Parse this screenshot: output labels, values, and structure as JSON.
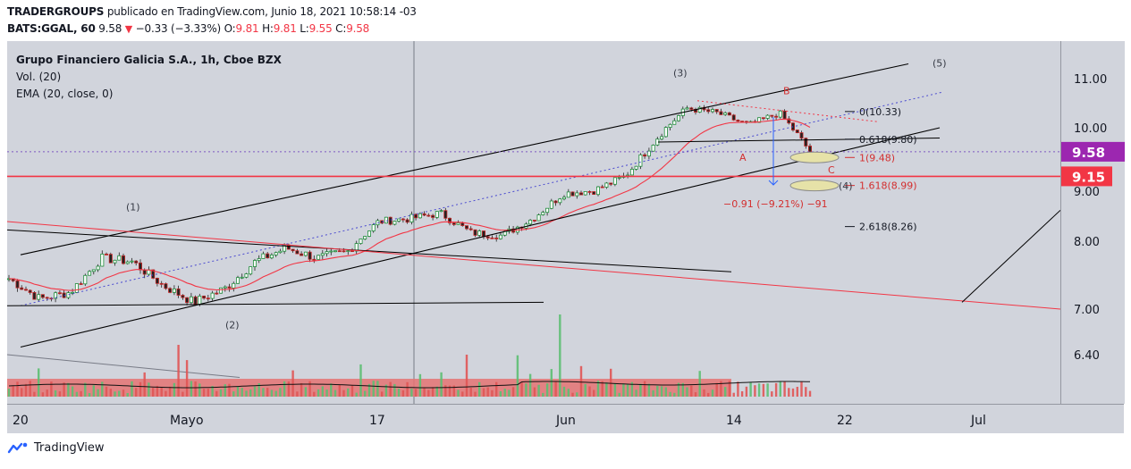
{
  "header": {
    "line1_author": "TRADERGROUPS",
    "line1_rest": "publicado en TradingView.com, Junio 18, 2021 10:58:14 -03",
    "symbol": "BATS:GGAL, 60",
    "last": "9.58",
    "change": "−0.33 (−3.33%)",
    "o_label": "O:",
    "o_val": "9.81",
    "h_label": "H:",
    "h_val": "9.81",
    "l_label": "L:",
    "l_val": "9.55",
    "c_label": "C:",
    "c_val": "9.58"
  },
  "legend": {
    "title": "Grupo Financiero Galicia S.A., 1h, Cboe BZX",
    "vol": "Vol. (20)",
    "ema": "EMA (20, close, 0)"
  },
  "footer": {
    "brand": "TradingView"
  },
  "chart_data": {
    "type": "line",
    "title": "Grupo Financiero Galicia S.A., 1h, Cboe BZX",
    "price_axis_ticks": [
      "11.00",
      "10.00",
      "8.00",
      "7.00",
      "6.40"
    ],
    "time_axis_ticks": [
      "20",
      "Mayo",
      "17",
      "Jun",
      "14",
      "22",
      "Jul"
    ],
    "current_price_label": "9.58",
    "level_label": "9.15",
    "hidden_tick": "9.00",
    "colors": {
      "up": "#26a69a",
      "down": "#ef5350",
      "ema": "#f23645",
      "hline": "#f23645",
      "current": "#9c27b0",
      "trend": "#000000"
    },
    "price_series": {
      "name": "GGAL 1h close (approx.)",
      "x": [
        "Apr 20",
        "Apr 22",
        "Apr 24",
        "Apr 27",
        "Apr 29",
        "May 1",
        "May 3",
        "May 5",
        "May 7",
        "May 10",
        "May 12",
        "May 14",
        "May 17",
        "May 19",
        "May 21",
        "May 24",
        "May 26",
        "May 28",
        "Jun 1",
        "Jun 3",
        "Jun 5",
        "Jun 7",
        "Jun 9",
        "Jun 11",
        "Jun 14",
        "Jun 16",
        "Jun 18"
      ],
      "values": [
        7.45,
        7.15,
        7.25,
        7.75,
        7.7,
        7.35,
        7.1,
        7.3,
        7.7,
        7.9,
        7.75,
        7.85,
        8.35,
        8.4,
        8.5,
        8.15,
        8.1,
        8.4,
        8.85,
        8.9,
        9.15,
        9.8,
        10.4,
        10.3,
        10.05,
        10.3,
        9.58
      ]
    },
    "ema_name": "EMA (20, close, 0)",
    "fib_levels": [
      {
        "label": "0(10.33)",
        "value": 10.33
      },
      {
        "label": "0.618(9.80)",
        "value": 9.8
      },
      {
        "label": "1(9.48)",
        "value": 9.48
      },
      {
        "label": "1.618(8.99)",
        "value": 8.99
      },
      {
        "label": "2.618(8.26)",
        "value": 8.26
      }
    ],
    "measure_label": "−0.91 (−9.21%) −91",
    "wave_labels": [
      "(1)",
      "(2)",
      "(3)",
      "(4)",
      "(5)",
      "A",
      "B",
      "C"
    ]
  }
}
